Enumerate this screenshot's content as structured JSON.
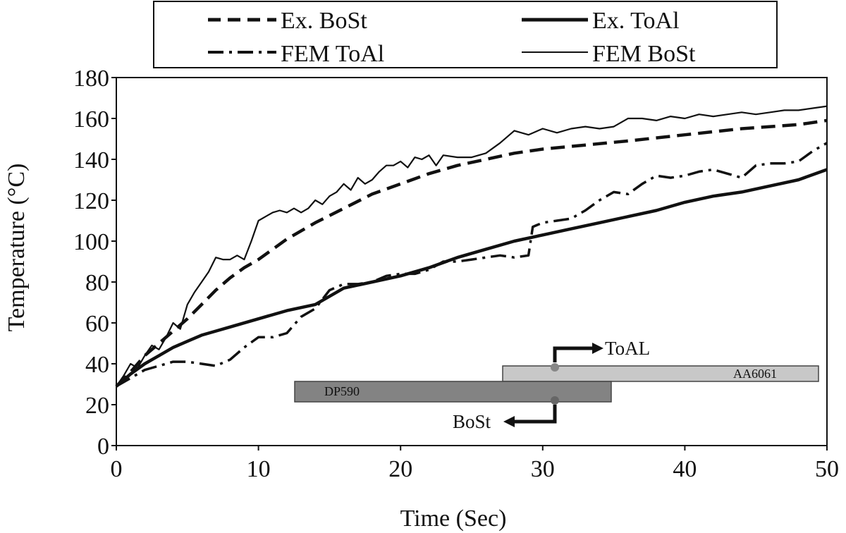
{
  "chart_data": {
    "type": "line",
    "xlabel": "Time (Sec)",
    "ylabel": "Temperature (°C)",
    "xlim": [
      0,
      50
    ],
    "ylim": [
      0,
      180
    ],
    "xticks": [
      0,
      10,
      20,
      30,
      40,
      50
    ],
    "yticks": [
      0,
      20,
      40,
      60,
      80,
      100,
      120,
      140,
      160,
      180
    ],
    "grid": false,
    "legend_position": "top",
    "legend": [
      "Ex. BoSt",
      "Ex. ToAl",
      "FEM ToAl",
      "FEM BoSt"
    ],
    "series": [
      {
        "name": "Ex. BoSt",
        "style": "dashed",
        "x": [
          0,
          1,
          2,
          3,
          4,
          5,
          6,
          7,
          8,
          9,
          10,
          12,
          14,
          16,
          18,
          20,
          22,
          24,
          26,
          28,
          30,
          33,
          36,
          40,
          44,
          48,
          50
        ],
        "y": [
          29,
          36,
          44,
          50,
          56,
          62,
          69,
          76,
          82,
          87,
          91,
          101,
          109,
          116,
          123,
          128,
          133,
          137,
          140,
          143,
          145,
          147,
          149,
          152,
          155,
          157,
          159
        ]
      },
      {
        "name": "Ex. ToAl",
        "style": "solid-thick",
        "x": [
          0,
          1,
          2,
          3,
          4,
          5,
          6,
          7,
          8,
          10,
          12,
          14,
          16,
          18,
          20,
          22,
          24,
          26,
          28,
          30,
          32,
          34,
          36,
          38,
          40,
          42,
          44,
          46,
          48,
          50
        ],
        "y": [
          29,
          35,
          40,
          44,
          48,
          51,
          54,
          56,
          58,
          62,
          66,
          69,
          77,
          80,
          83,
          87,
          92,
          96,
          100,
          103,
          106,
          109,
          112,
          115,
          119,
          122,
          124,
          127,
          130,
          135
        ]
      },
      {
        "name": "FEM ToAl",
        "style": "dash-dot",
        "x": [
          0,
          1,
          2,
          3,
          4,
          5,
          6,
          7,
          8,
          9,
          10,
          11,
          12,
          13,
          14,
          15,
          16,
          17,
          18,
          19,
          20,
          21,
          22,
          23,
          24,
          25,
          26,
          27,
          28,
          29,
          29.3,
          30,
          31,
          32,
          33,
          34,
          35,
          36,
          37,
          38,
          39,
          40,
          41,
          42,
          43,
          44,
          45,
          46,
          47,
          48,
          49,
          50
        ],
        "y": [
          29,
          33,
          37,
          39,
          41,
          41,
          40,
          39,
          42,
          48,
          53,
          53,
          55,
          63,
          67,
          76,
          79,
          79,
          80,
          83,
          84,
          84,
          86,
          90,
          90,
          91,
          92,
          93,
          92,
          93,
          107,
          109,
          110,
          111,
          115,
          120,
          124,
          123,
          128,
          132,
          131,
          132,
          134,
          135,
          133,
          131,
          137,
          138,
          138,
          139,
          144,
          148
        ]
      },
      {
        "name": "FEM BoSt",
        "style": "solid-thin",
        "x": [
          0,
          0.5,
          1,
          1.5,
          2,
          2.5,
          3,
          3.5,
          4,
          4.5,
          5,
          5.5,
          6,
          6.5,
          7,
          7.5,
          8,
          8.5,
          9,
          9.5,
          10,
          10.5,
          11,
          11.5,
          12,
          12.5,
          13,
          13.5,
          14,
          14.5,
          15,
          15.5,
          16,
          16.5,
          17,
          17.5,
          18,
          18.5,
          19,
          19.5,
          20,
          20.5,
          21,
          21.5,
          22,
          22.5,
          23,
          24,
          25,
          26,
          27,
          28,
          29,
          30,
          31,
          32,
          33,
          34,
          35,
          36,
          37,
          38,
          39,
          40,
          41,
          42,
          43,
          44,
          45,
          46,
          47,
          48,
          49,
          50
        ],
        "y": [
          29,
          34,
          40,
          38,
          44,
          49,
          47,
          53,
          60,
          57,
          69,
          75,
          80,
          85,
          92,
          91,
          91,
          93,
          91,
          100,
          110,
          112,
          114,
          115,
          114,
          116,
          114,
          116,
          120,
          118,
          122,
          124,
          128,
          125,
          131,
          128,
          130,
          134,
          137,
          137,
          139,
          136,
          141,
          140,
          142,
          137,
          142,
          141,
          141,
          143,
          148,
          154,
          152,
          155,
          153,
          155,
          156,
          155,
          156,
          160,
          160,
          159,
          161,
          160,
          162,
          161,
          162,
          163,
          162,
          163,
          164,
          164,
          165,
          166
        ]
      }
    ],
    "inset": {
      "upper_plate": "AA6061",
      "lower_plate": "DP590",
      "upper_arrow": "ToAL",
      "lower_arrow": "BoSt"
    }
  }
}
